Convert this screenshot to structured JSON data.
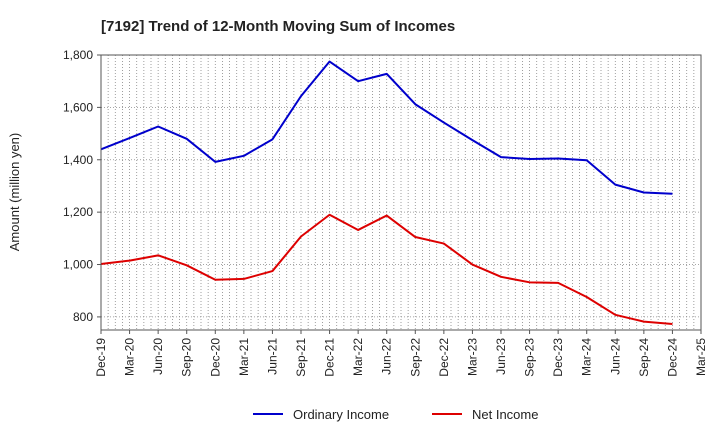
{
  "chart_data": {
    "type": "line",
    "title": "[7192]  Trend of 12-Month Moving Sum of Incomes",
    "xlabel": "",
    "ylabel": "Amount (million yen)",
    "ylim": [
      750,
      1800
    ],
    "yticks": [
      800,
      1000,
      1200,
      1400,
      1600,
      1800
    ],
    "ytick_labels": [
      "800",
      "1,000",
      "1,200",
      "1,400",
      "1,600",
      "1,800"
    ],
    "grid": true,
    "legend_position": "bottom",
    "categories": [
      "Dec-19",
      "Mar-20",
      "Jun-20",
      "Sep-20",
      "Dec-20",
      "Mar-21",
      "Jun-21",
      "Sep-21",
      "Dec-21",
      "Mar-22",
      "Jun-22",
      "Sep-22",
      "Dec-22",
      "Mar-23",
      "Jun-23",
      "Sep-23",
      "Dec-23",
      "Mar-24",
      "Jun-24",
      "Sep-24",
      "Dec-24",
      "Mar-25"
    ],
    "series": [
      {
        "name": "Ordinary Income",
        "color": "#0000cc",
        "values": [
          1440,
          1483,
          1527,
          1480,
          1392,
          1415,
          1478,
          1643,
          1775,
          1700,
          1728,
          1612,
          1542,
          1475,
          1410,
          1403,
          1405,
          1398,
          1305,
          1275,
          1270,
          null
        ]
      },
      {
        "name": "Net Income",
        "color": "#dd0000",
        "values": [
          1002,
          1015,
          1035,
          997,
          942,
          945,
          975,
          1107,
          1190,
          1132,
          1187,
          1105,
          1080,
          1000,
          953,
          932,
          930,
          876,
          808,
          782,
          773,
          null
        ]
      }
    ]
  }
}
